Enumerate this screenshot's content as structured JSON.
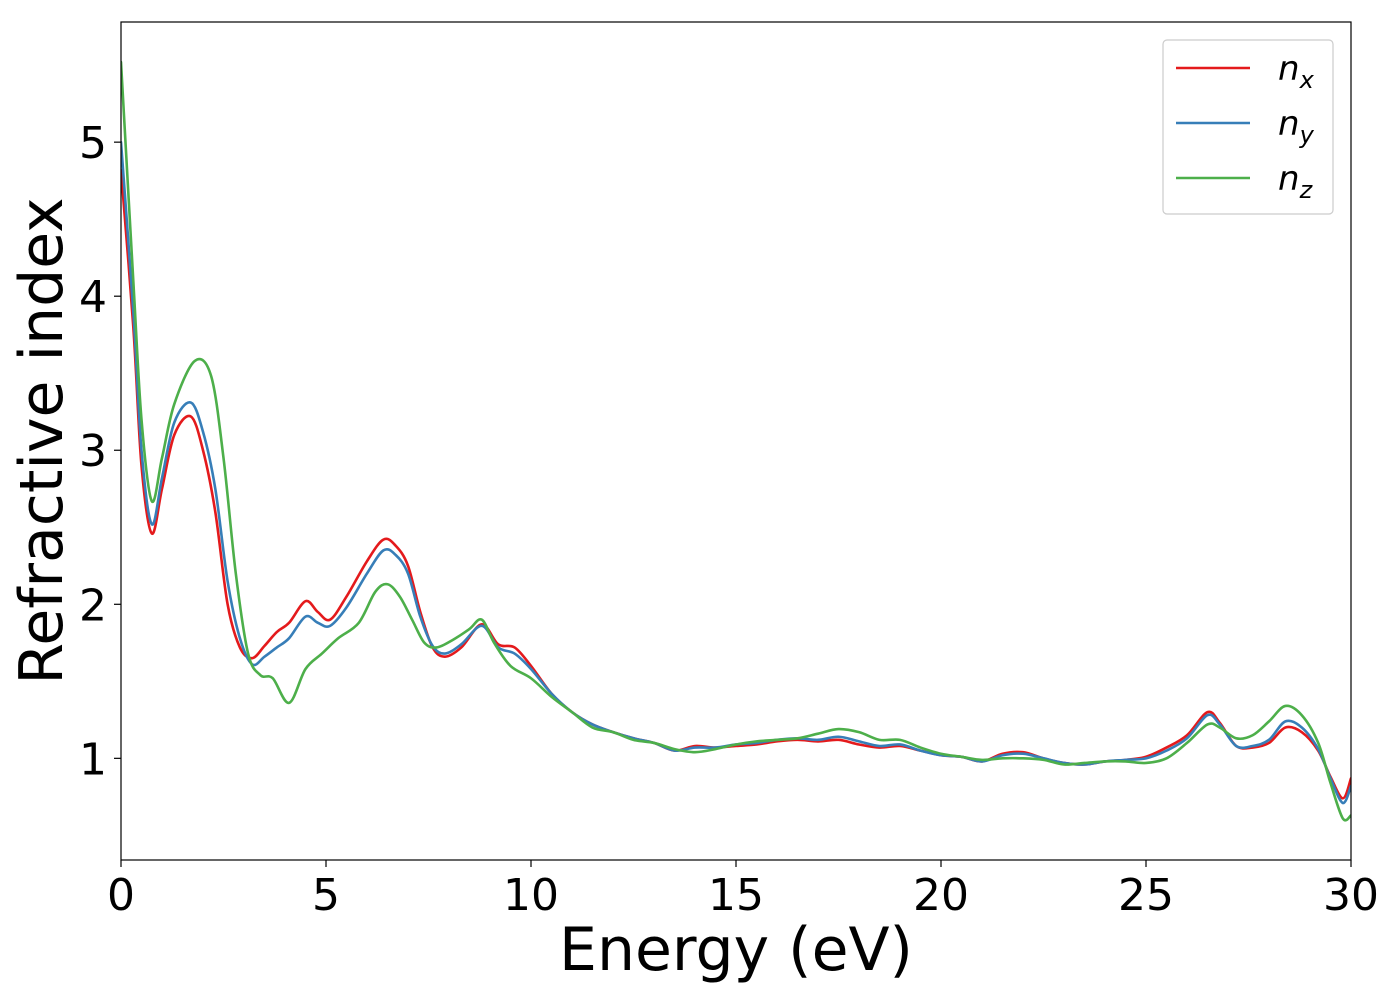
{
  "chart_data": {
    "type": "line",
    "xlabel": "Energy (eV)",
    "ylabel": "Refractive index",
    "xlim": [
      0,
      30
    ],
    "ylim": [
      0.34,
      5.78
    ],
    "xticks": [
      0,
      5,
      10,
      15,
      20,
      25,
      30
    ],
    "yticks": [
      1,
      2,
      3,
      4,
      5
    ],
    "grid": false,
    "legend_position": "top-right",
    "series": [
      {
        "name": "n",
        "subscript": "x",
        "color": "#e41a1c",
        "x": [
          0,
          0.3,
          0.5,
          0.75,
          1.0,
          1.3,
          1.7,
          2.0,
          2.3,
          2.6,
          2.9,
          3.2,
          3.5,
          3.8,
          4.1,
          4.5,
          4.8,
          5.1,
          5.5,
          6.0,
          6.4,
          6.7,
          7.0,
          7.3,
          7.6,
          7.9,
          8.3,
          8.8,
          9.2,
          9.6,
          10.0,
          10.5,
          11.0,
          11.5,
          12.0,
          12.5,
          13.0,
          13.5,
          14.0,
          14.5,
          15.0,
          15.5,
          16.0,
          16.5,
          17.0,
          17.5,
          18.0,
          18.5,
          19.0,
          19.5,
          20.0,
          20.5,
          21.0,
          21.5,
          22.0,
          22.5,
          23.0,
          23.5,
          24.0,
          24.5,
          25.0,
          25.5,
          26.0,
          26.5,
          26.8,
          27.2,
          27.6,
          28.0,
          28.4,
          28.8,
          29.2,
          29.5,
          29.8,
          30.0
        ],
        "values": [
          4.82,
          3.8,
          2.9,
          2.46,
          2.75,
          3.1,
          3.22,
          3.0,
          2.6,
          2.0,
          1.72,
          1.65,
          1.73,
          1.82,
          1.88,
          2.02,
          1.95,
          1.9,
          2.05,
          2.28,
          2.42,
          2.38,
          2.25,
          1.95,
          1.72,
          1.66,
          1.72,
          1.87,
          1.74,
          1.72,
          1.6,
          1.42,
          1.3,
          1.22,
          1.17,
          1.13,
          1.1,
          1.05,
          1.08,
          1.07,
          1.08,
          1.09,
          1.11,
          1.12,
          1.11,
          1.12,
          1.09,
          1.07,
          1.08,
          1.05,
          1.02,
          1.01,
          0.98,
          1.03,
          1.04,
          1.0,
          0.97,
          0.96,
          0.98,
          0.99,
          1.01,
          1.07,
          1.15,
          1.3,
          1.23,
          1.08,
          1.07,
          1.1,
          1.2,
          1.17,
          1.05,
          0.88,
          0.74,
          0.87
        ]
      },
      {
        "name": "n",
        "subscript": "y",
        "color": "#377eb8",
        "x": [
          0,
          0.3,
          0.5,
          0.75,
          1.0,
          1.3,
          1.7,
          2.0,
          2.3,
          2.6,
          2.9,
          3.2,
          3.5,
          3.8,
          4.1,
          4.5,
          4.8,
          5.1,
          5.5,
          6.0,
          6.4,
          6.7,
          7.0,
          7.3,
          7.6,
          7.9,
          8.3,
          8.8,
          9.2,
          9.6,
          10.0,
          10.5,
          11.0,
          11.5,
          12.0,
          12.5,
          13.0,
          13.5,
          14.0,
          14.5,
          15.0,
          15.5,
          16.0,
          16.5,
          17.0,
          17.5,
          18.0,
          18.5,
          19.0,
          19.5,
          20.0,
          20.5,
          21.0,
          21.5,
          22.0,
          22.5,
          23.0,
          23.5,
          24.0,
          24.5,
          25.0,
          25.5,
          26.0,
          26.5,
          26.8,
          27.2,
          27.6,
          28.0,
          28.4,
          28.8,
          29.2,
          29.5,
          29.8,
          30.0
        ],
        "values": [
          5.0,
          3.9,
          3.0,
          2.52,
          2.82,
          3.18,
          3.31,
          3.12,
          2.75,
          2.15,
          1.78,
          1.61,
          1.66,
          1.72,
          1.78,
          1.92,
          1.88,
          1.86,
          1.98,
          2.2,
          2.35,
          2.32,
          2.2,
          1.92,
          1.73,
          1.68,
          1.74,
          1.86,
          1.72,
          1.68,
          1.58,
          1.42,
          1.3,
          1.22,
          1.17,
          1.13,
          1.1,
          1.05,
          1.07,
          1.07,
          1.09,
          1.1,
          1.12,
          1.13,
          1.12,
          1.14,
          1.11,
          1.08,
          1.09,
          1.05,
          1.02,
          1.01,
          0.98,
          1.02,
          1.03,
          1.0,
          0.97,
          0.96,
          0.98,
          0.99,
          1.0,
          1.05,
          1.13,
          1.28,
          1.22,
          1.08,
          1.08,
          1.12,
          1.24,
          1.2,
          1.06,
          0.87,
          0.71,
          0.82
        ]
      },
      {
        "name": "n",
        "subscript": "z",
        "color": "#4daf4a",
        "x": [
          0,
          0.3,
          0.5,
          0.75,
          1.0,
          1.3,
          1.8,
          2.2,
          2.5,
          2.8,
          3.1,
          3.4,
          3.7,
          4.1,
          4.5,
          4.9,
          5.3,
          5.8,
          6.2,
          6.5,
          6.8,
          7.1,
          7.4,
          7.7,
          8.1,
          8.5,
          8.8,
          9.1,
          9.5,
          10.0,
          10.5,
          11.0,
          11.5,
          12.0,
          12.5,
          13.0,
          13.5,
          14.0,
          14.5,
          15.0,
          15.5,
          16.0,
          16.5,
          17.0,
          17.5,
          18.0,
          18.5,
          19.0,
          19.5,
          20.0,
          20.5,
          21.0,
          21.5,
          22.0,
          22.5,
          23.0,
          23.5,
          24.0,
          24.5,
          25.0,
          25.5,
          26.0,
          26.5,
          26.8,
          27.2,
          27.6,
          28.0,
          28.4,
          28.8,
          29.2,
          29.5,
          29.8,
          30.0
        ],
        "values": [
          5.52,
          4.1,
          3.2,
          2.67,
          2.95,
          3.3,
          3.58,
          3.48,
          2.95,
          2.2,
          1.68,
          1.54,
          1.52,
          1.36,
          1.58,
          1.68,
          1.78,
          1.88,
          2.08,
          2.13,
          2.05,
          1.9,
          1.75,
          1.72,
          1.77,
          1.84,
          1.9,
          1.75,
          1.6,
          1.52,
          1.4,
          1.3,
          1.2,
          1.17,
          1.12,
          1.1,
          1.06,
          1.04,
          1.06,
          1.09,
          1.11,
          1.12,
          1.13,
          1.16,
          1.19,
          1.17,
          1.12,
          1.12,
          1.07,
          1.03,
          1.01,
          0.99,
          1.0,
          1.0,
          0.99,
          0.96,
          0.97,
          0.98,
          0.98,
          0.97,
          1.0,
          1.1,
          1.22,
          1.2,
          1.13,
          1.15,
          1.24,
          1.34,
          1.28,
          1.1,
          0.84,
          0.61,
          0.63
        ]
      }
    ]
  }
}
